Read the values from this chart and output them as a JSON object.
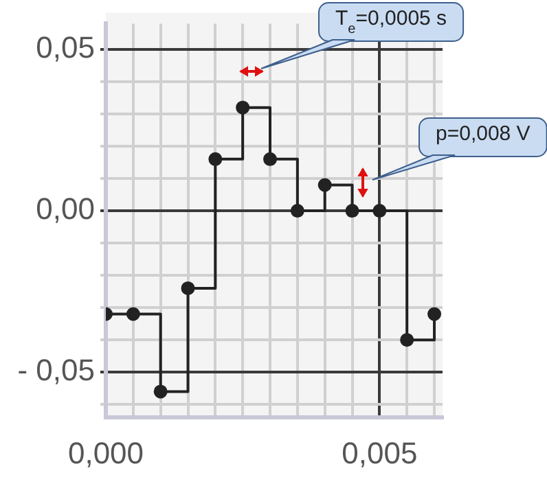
{
  "chart_data": {
    "type": "step",
    "x": [
      0,
      0.0005,
      0.001,
      0.0015,
      0.002,
      0.0025,
      0.003,
      0.0035,
      0.004,
      0.0045,
      0.005,
      0.0055,
      0.006
    ],
    "values": [
      -0.032,
      -0.032,
      -0.056,
      -0.024,
      0.016,
      0.032,
      0.016,
      0,
      0.008,
      0,
      0,
      -0.04,
      -0.032
    ],
    "color": "#222222",
    "marker": "circle",
    "line_style": "solid",
    "grid": true,
    "legend": false,
    "xlim": [
      0,
      0.00615
    ],
    "ylim": [
      -0.064,
      0.058
    ],
    "xticks": [
      {
        "value": 0,
        "label": "0,000"
      },
      {
        "value": 0.0005,
        "label": null
      },
      {
        "value": 0.001,
        "label": null
      },
      {
        "value": 0.0015,
        "label": null
      },
      {
        "value": 0.002,
        "label": null
      },
      {
        "value": 0.0025,
        "label": null
      },
      {
        "value": 0.003,
        "label": null
      },
      {
        "value": 0.0035,
        "label": null
      },
      {
        "value": 0.004,
        "label": null
      },
      {
        "value": 0.0045,
        "label": null
      },
      {
        "value": 0.005,
        "label": "0,005"
      },
      {
        "value": 0.0055,
        "label": null
      },
      {
        "value": 0.006,
        "label": null
      }
    ],
    "yticks": [
      {
        "value": -0.06,
        "label": null
      },
      {
        "value": -0.05,
        "label": "- 0,05"
      },
      {
        "value": -0.04,
        "label": null
      },
      {
        "value": -0.03,
        "label": null
      },
      {
        "value": -0.02,
        "label": null
      },
      {
        "value": -0.01,
        "label": null
      },
      {
        "value": 0,
        "label": "0,00"
      },
      {
        "value": 0.01,
        "label": null
      },
      {
        "value": 0.02,
        "label": null
      },
      {
        "value": 0.03,
        "label": null
      },
      {
        "value": 0.04,
        "label": null
      },
      {
        "value": 0.05,
        "label": "0,05"
      }
    ],
    "annotations": [
      "T$_{e}$=0,0005 s",
      "p=0,008 V"
    ]
  }
}
